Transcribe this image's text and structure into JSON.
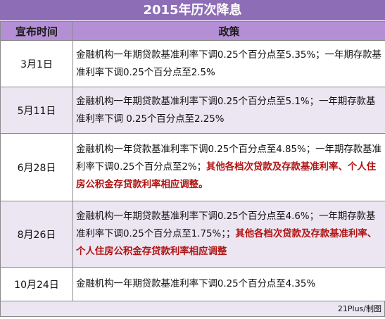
{
  "title": "2015年历次降息",
  "headers": {
    "date": "宣布时间",
    "policy": "政策"
  },
  "rows": [
    {
      "date": "3月1日",
      "text": "金融机构一年期贷款基准利率下调0.25个百分点至5.35%；一年期存款基准利率下调0.25个百分点至2.5%",
      "highlight": ""
    },
    {
      "date": "5月11日",
      "text": "金融机构一年期贷款基准利率下调0.25个百分点至5.1%；一年期存款基准利率下调 0.25个百分点至2.25%",
      "highlight": ""
    },
    {
      "date": "6月28日",
      "text": "金融机构一年贷款基准利率下调0.25个百分点至4.85%；一年期存款基准利率下调0.25个百分点至2%；",
      "highlight": "其他各档次贷款及存款基准利率、个人住房公积金存贷款利率相应调整。"
    },
    {
      "date": "8月26日",
      "text": "金融机构一年期贷款基准利率下调0.25个百分点至4.6%；一年期存款基准利率下调0.25个百分点至1.75%；；",
      "highlight": "其他各档次贷款及存款基准利率、个人住房公积金存贷款利率相应调整"
    },
    {
      "date": "10月24日",
      "text": "金融机构一年期贷款基准利率下调0.25个百分点至4.35%",
      "highlight": ""
    }
  ],
  "credit": "21Plus/制图",
  "colors": {
    "title_bg": "#8e6db7",
    "header_bg": "#b58fd6",
    "stripe": "#ebe6f2",
    "highlight": "#b01212"
  }
}
